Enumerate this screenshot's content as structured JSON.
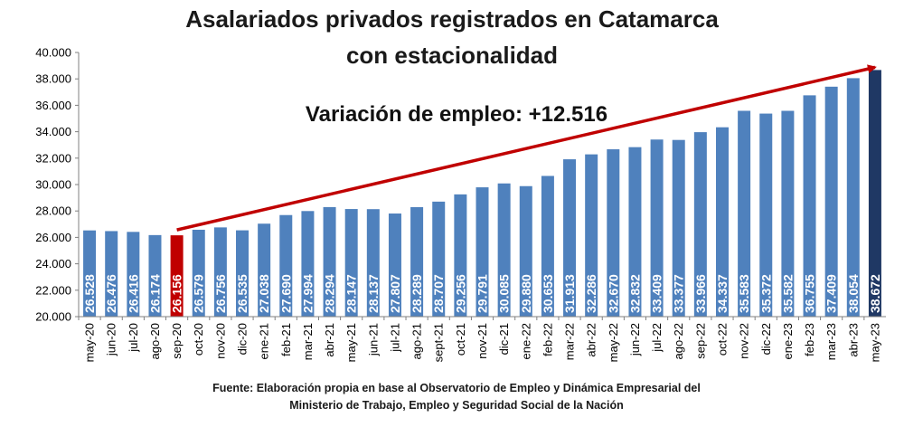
{
  "chart_data": {
    "type": "bar",
    "title": "Asalariados privados registrados en Catamarca",
    "subtitle": "con estacionalidad",
    "annotation": "Variación  de empleo:  +12.516",
    "source_line1": "Fuente: Elaboración propia en base al Observatorio de Empleo y Dinámica Empresarial del",
    "source_line2": "Ministerio de Trabajo, Empleo y Seguridad Social de la Nación",
    "categories": [
      "may-20",
      "jun-20",
      "jul-20",
      "ago-20",
      "sep-20",
      "oct-20",
      "nov-20",
      "dic-20",
      "ene-21",
      "feb-21",
      "mar-21",
      "abr-21",
      "may-21",
      "jun-21",
      "jul-21",
      "ago-21",
      "sept-21",
      "oct-21",
      "nov-21",
      "dic-21",
      "ene-22",
      "feb-22",
      "mar-22",
      "abr-22",
      "may-22",
      "jun-22",
      "jul-22",
      "ago-22",
      "sep-22",
      "oct-22",
      "nov-22",
      "dic-22",
      "ene-23",
      "feb-23",
      "mar-23",
      "abr-23",
      "may-23"
    ],
    "values": [
      26528,
      26476,
      26416,
      26174,
      26156,
      26579,
      26756,
      26535,
      27038,
      27690,
      27994,
      28294,
      28147,
      28137,
      27807,
      28289,
      28707,
      29256,
      29791,
      30085,
      29880,
      30653,
      31913,
      32286,
      32670,
      32832,
      33409,
      33377,
      33966,
      34337,
      35583,
      35372,
      35582,
      36755,
      37409,
      38054,
      38672
    ],
    "value_labels": [
      "26.528",
      "26.476",
      "26.416",
      "26.174",
      "26.156",
      "26.579",
      "26.756",
      "26.535",
      "27.038",
      "27.690",
      "27.994",
      "28.294",
      "28.147",
      "28.137",
      "27.807",
      "28.289",
      "28.707",
      "29.256",
      "29.791",
      "30.085",
      "29.880",
      "30.653",
      "31.913",
      "32.286",
      "32.670",
      "32.832",
      "33.409",
      "33.377",
      "33.966",
      "34.337",
      "35.583",
      "35.372",
      "35.582",
      "36.755",
      "37.409",
      "38.054",
      "38.672"
    ],
    "highlight_indices": {
      "4": "#c00000",
      "36": "#1f3864"
    },
    "yticks": [
      "20.000",
      "22.000",
      "24.000",
      "26.000",
      "28.000",
      "30.000",
      "32.000",
      "34.000",
      "36.000",
      "38.000",
      "40.000"
    ],
    "ylim": [
      20000,
      40000
    ],
    "ytick_step": 2000,
    "grid": false,
    "bar_color": "#4f81bd",
    "arrow_color": "#c00000"
  }
}
